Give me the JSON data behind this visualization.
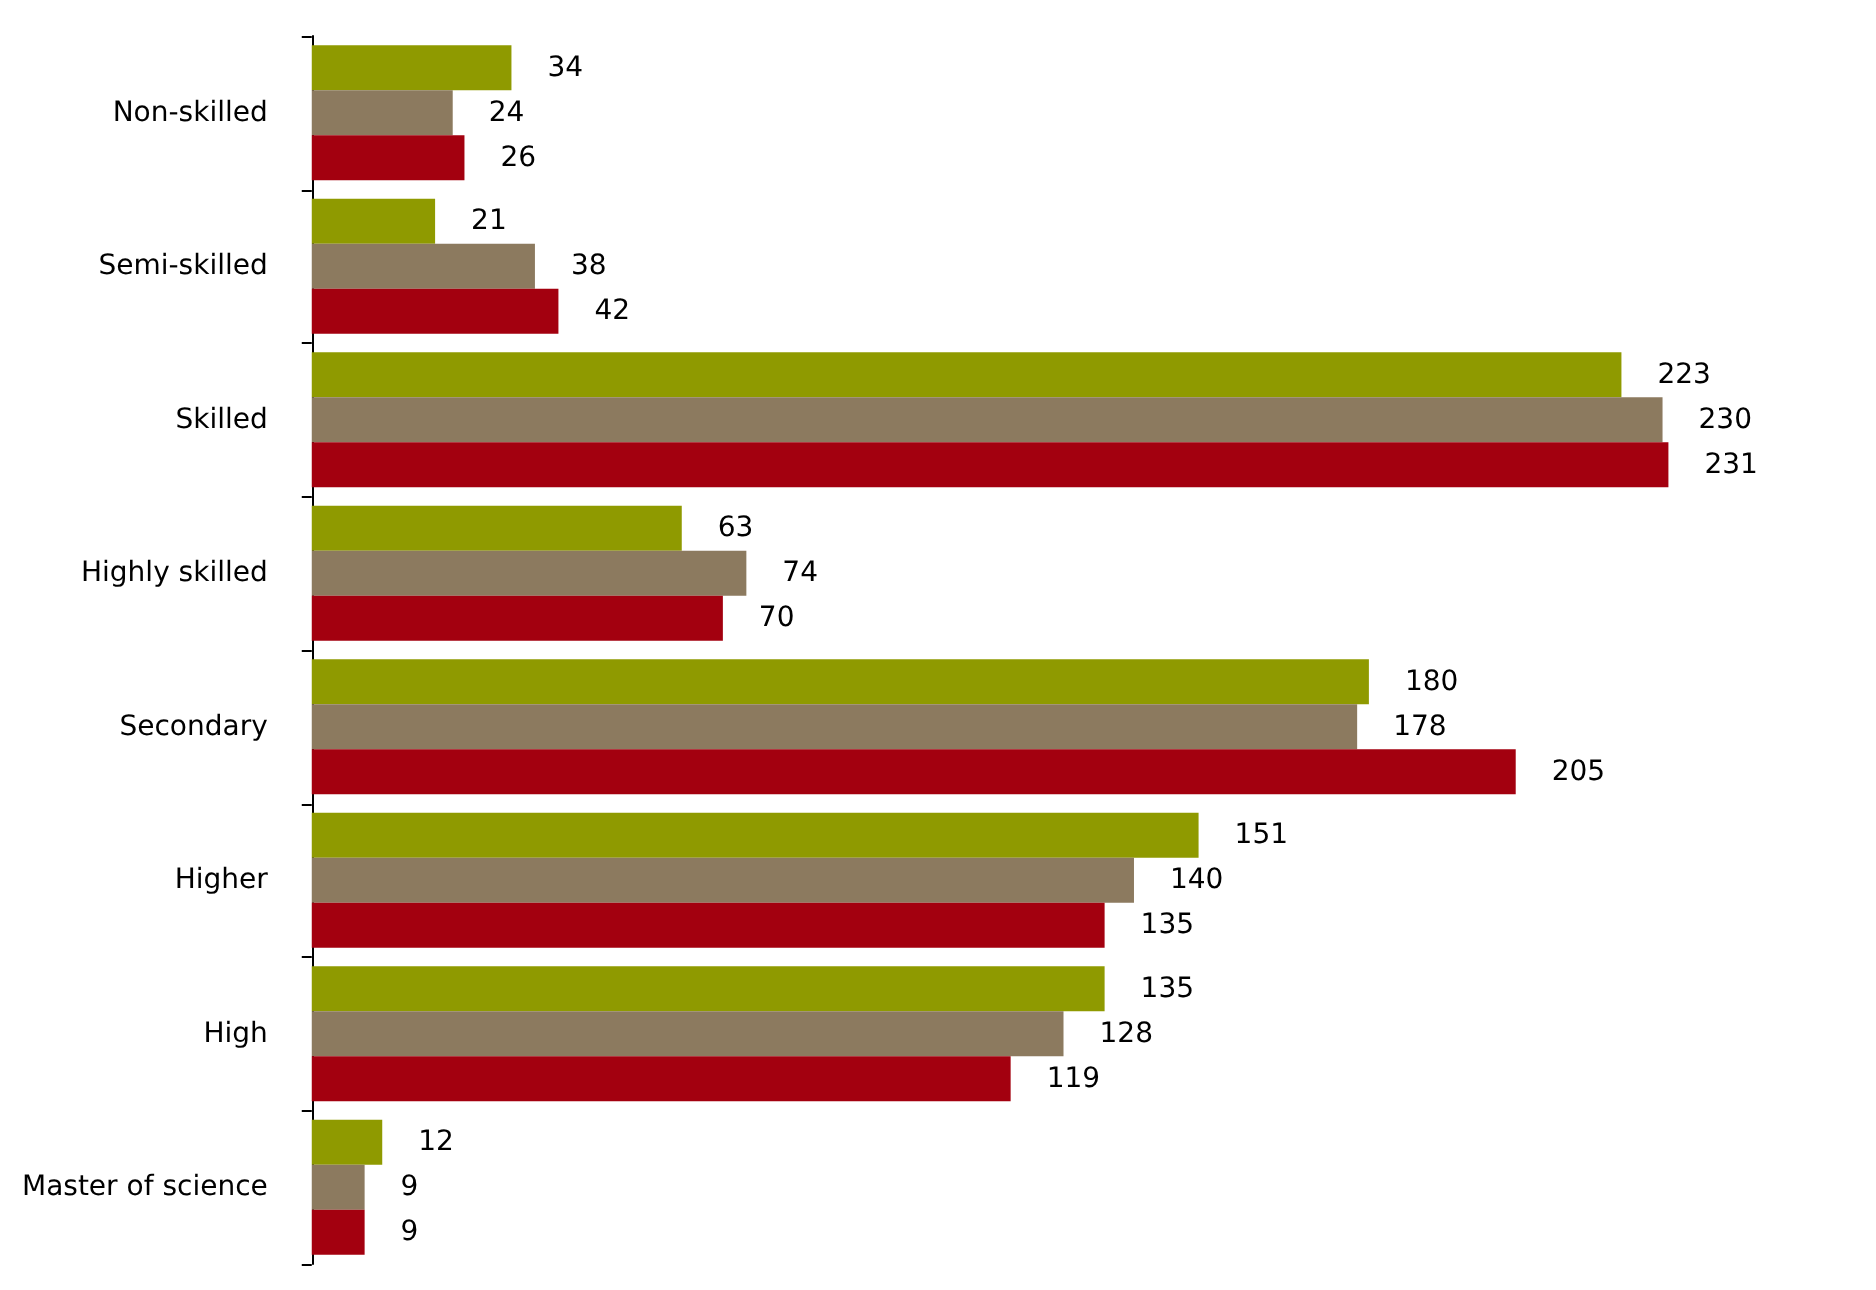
{
  "chart_data": {
    "type": "bar",
    "orientation": "horizontal",
    "categories": [
      "Non-skilled",
      "Semi-skilled",
      "Skilled",
      "Highly skilled",
      "Secondary",
      "Higher",
      "High",
      "Master of science"
    ],
    "series": [
      {
        "color": "#8f9a00",
        "values": [
          34,
          21,
          223,
          63,
          180,
          151,
          135,
          12
        ]
      },
      {
        "color": "#8c7a5f",
        "values": [
          24,
          38,
          230,
          74,
          178,
          140,
          128,
          9
        ]
      },
      {
        "color": "#a3000f",
        "values": [
          26,
          42,
          231,
          70,
          205,
          135,
          119,
          9
        ]
      }
    ],
    "data_labels": true,
    "tick_labels": "y"
  }
}
